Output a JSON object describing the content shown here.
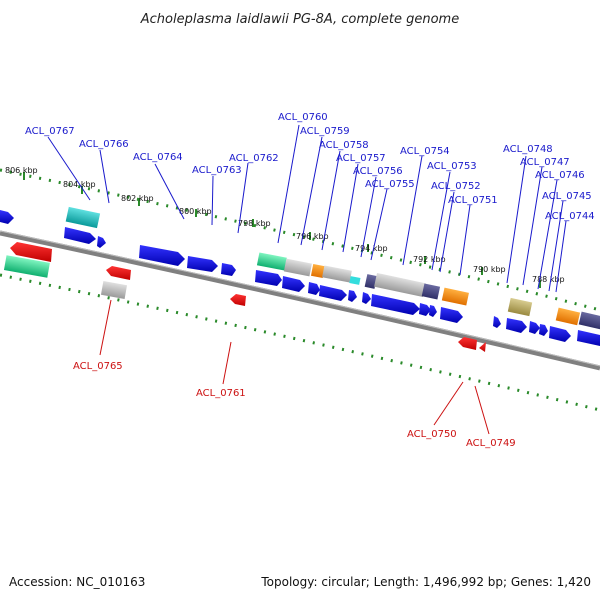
{
  "title": "Acholeplasma laidlawii PG-8A, complete genome",
  "footer": {
    "accession": "Accession: NC_010163",
    "summary": "Topology: circular; Length: 1,496,992 bp; Genes: 1,420"
  },
  "colors": {
    "upper_label": "#1a1acc",
    "lower_label": "#cc1111",
    "tick": "#2a8a2a",
    "backbone": "#808080"
  },
  "kbp_ticks": [
    "806 kbp",
    "804 kbp",
    "802 kbp",
    "800 kbp",
    "798 kbp",
    "796 kbp",
    "794 kbp",
    "792 kbp",
    "790 kbp",
    "788 kbp"
  ],
  "upper_labels": [
    "ACL_0767",
    "ACL_0766",
    "ACL_0764",
    "ACL_0763",
    "ACL_0762",
    "ACL_0760",
    "ACL_0759",
    "ACL_0758",
    "ACL_0757",
    "ACL_0756",
    "ACL_0755",
    "ACL_0754",
    "ACL_0753",
    "ACL_0752",
    "ACL_0751",
    "ACL_0748",
    "ACL_0747",
    "ACL_0746",
    "ACL_0745",
    "ACL_0744"
  ],
  "lower_labels": [
    "ACL_0765",
    "ACL_0761",
    "ACL_0750",
    "ACL_0749"
  ]
}
